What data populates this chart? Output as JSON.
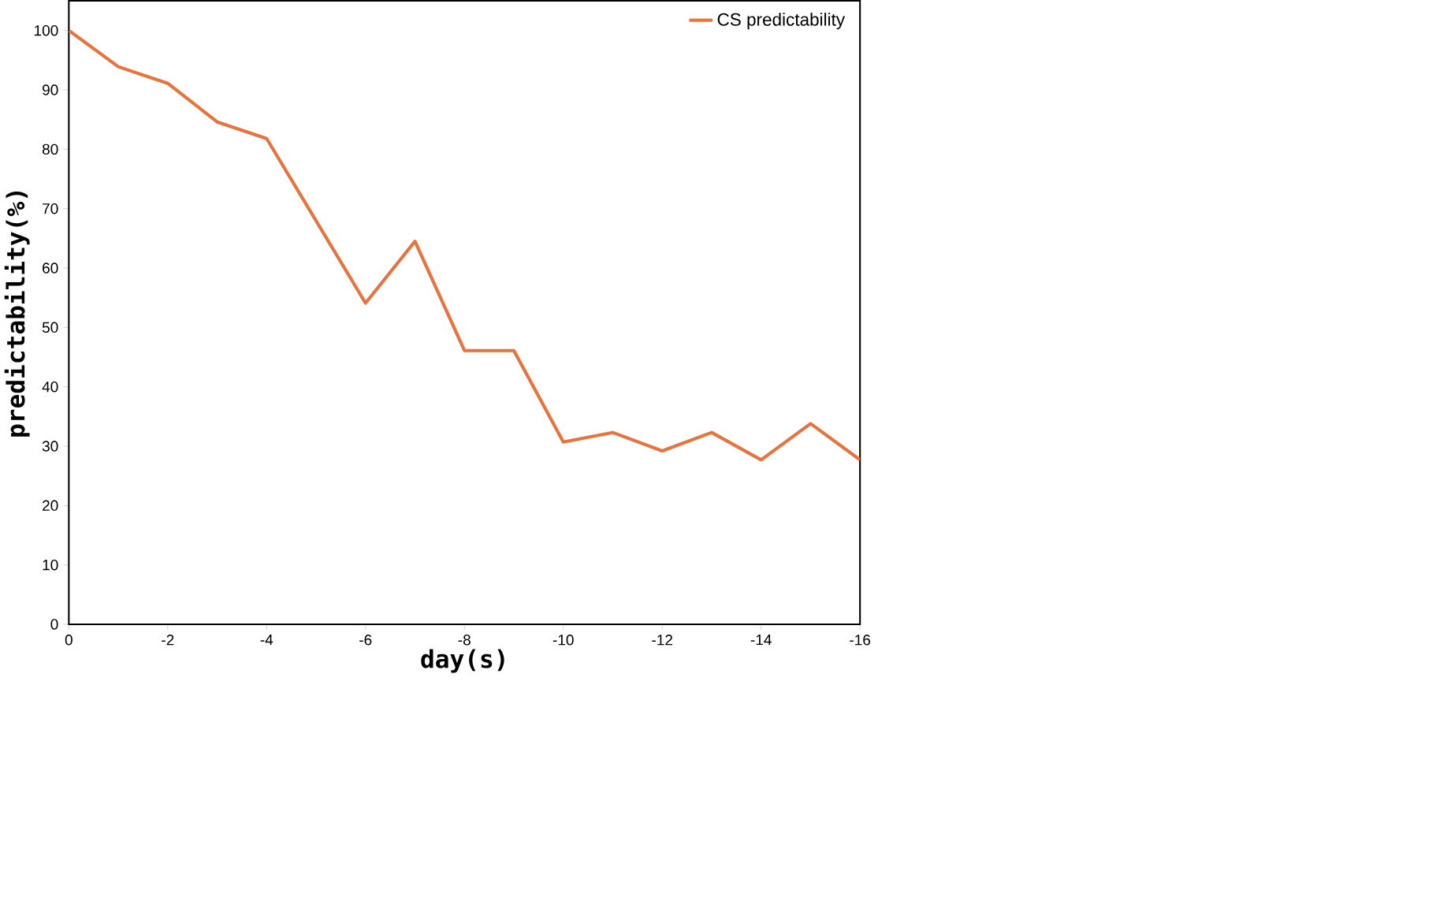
{
  "chart_data": {
    "type": "line",
    "xlabel": "day(s)",
    "ylabel": "predictability(%)",
    "x": [
      0,
      -1,
      -2,
      -3,
      -4,
      -6,
      -7,
      -8,
      -9,
      -10,
      -11,
      -12,
      -13,
      -14,
      -15,
      -16
    ],
    "series": [
      {
        "name": "CS predictability",
        "color": "#e8733c",
        "values": [
          100,
          93.9,
          91.1,
          84.6,
          81.8,
          54.1,
          64.5,
          46.1,
          46.1,
          30.7,
          32.3,
          29.2,
          32.3,
          27.7,
          33.8,
          27.7
        ]
      }
    ],
    "xlim": [
      0,
      -16
    ],
    "xticks": [
      0,
      -2,
      -4,
      -6,
      -8,
      -10,
      -12,
      -14,
      -16
    ],
    "ylim": [
      0,
      105
    ],
    "yticks": [
      0,
      10,
      20,
      30,
      40,
      50,
      60,
      70,
      80,
      90,
      100
    ],
    "legend": "top right",
    "grid": false,
    "marker": "none",
    "line_style": "solid"
  }
}
